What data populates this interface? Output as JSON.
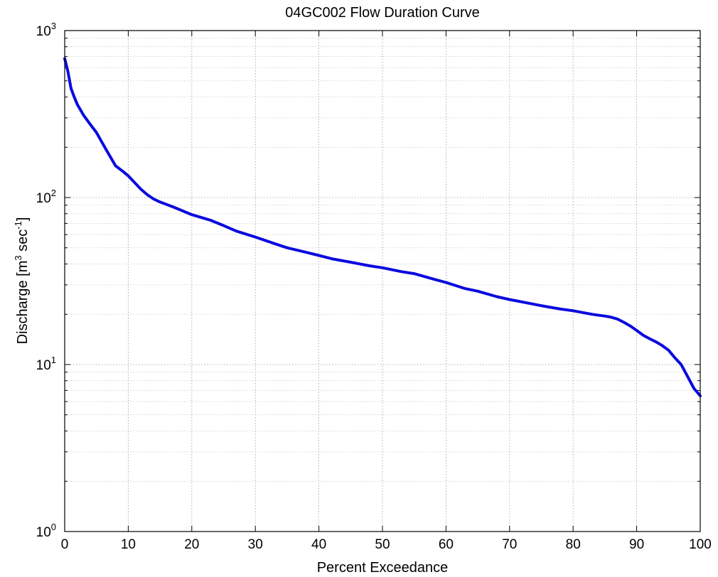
{
  "chart_data": {
    "type": "line",
    "title": "04GC002 Flow Duration Curve",
    "xlabel": "Percent Exceedance",
    "ylabel": {
      "prefix": "Discharge [m",
      "sup1": "3",
      "middle": " sec",
      "sup2": "-1",
      "suffix": "]"
    },
    "xlim": [
      0,
      100
    ],
    "ylim": [
      1,
      1000
    ],
    "yscale": "log",
    "grid": true,
    "grid_style": "dotted",
    "x_ticks": [
      0,
      10,
      20,
      30,
      40,
      50,
      60,
      70,
      80,
      90,
      100
    ],
    "x_tick_labels": [
      "0",
      "10",
      "20",
      "30",
      "40",
      "50",
      "60",
      "70",
      "80",
      "90",
      "100"
    ],
    "y_ticks": [
      1,
      10,
      100,
      1000
    ],
    "y_tick_labels": [
      {
        "base": "10",
        "exp": "0"
      },
      {
        "base": "10",
        "exp": "1"
      },
      {
        "base": "10",
        "exp": "2"
      },
      {
        "base": "10",
        "exp": "3"
      }
    ],
    "series": [
      {
        "color": "#0a0adf",
        "x": [
          0,
          0.5,
          1,
          1.5,
          2,
          3,
          4,
          5,
          6,
          7,
          8,
          9,
          10,
          11,
          12,
          13,
          14,
          15,
          17,
          20,
          23,
          25,
          27,
          30,
          33,
          35,
          38,
          40,
          42,
          45,
          48,
          50,
          53,
          55,
          58,
          60,
          63,
          65,
          68,
          70,
          73,
          75,
          78,
          80,
          83,
          85,
          86,
          87,
          88,
          89,
          90,
          91,
          92,
          93,
          94,
          95,
          96,
          97,
          98,
          99,
          100
        ],
        "y": [
          680,
          570,
          450,
          400,
          360,
          310,
          275,
          245,
          210,
          180,
          155,
          145,
          135,
          123,
          112,
          104,
          98,
          94,
          88,
          79,
          73,
          68,
          63,
          58,
          53,
          50,
          47,
          45,
          43,
          41,
          39,
          38,
          36,
          35,
          32.5,
          31,
          28.5,
          27.5,
          25.5,
          24.5,
          23.3,
          22.5,
          21.5,
          21,
          20,
          19.5,
          19.2,
          18.7,
          17.9,
          17,
          16,
          15,
          14.3,
          13.7,
          13,
          12.2,
          11,
          10,
          8.5,
          7.2,
          6.5
        ]
      }
    ]
  }
}
